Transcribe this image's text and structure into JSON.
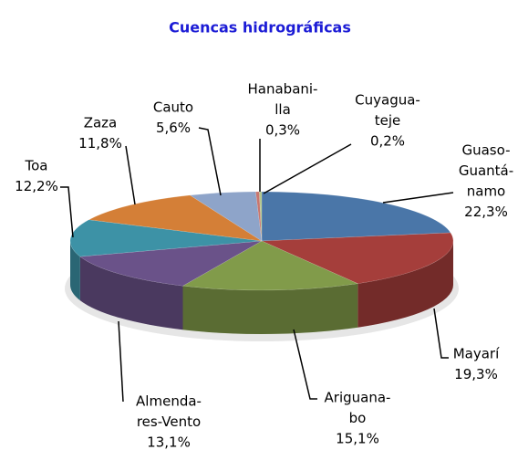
{
  "chart_data": {
    "type": "pie3d",
    "title": "Cuencas hidrográficas",
    "categories": [
      [
        "Guaso-",
        "Guantá-",
        "namo"
      ],
      [
        "Mayarí"
      ],
      [
        "Ariguana-",
        "bo"
      ],
      [
        "Almenda-",
        "res-Vento"
      ],
      [
        "Toa"
      ],
      [
        "Zaza"
      ],
      [
        "Cauto"
      ],
      [
        "Hanabani-",
        "lla"
      ],
      [
        "Cuyagua-",
        "teje"
      ]
    ],
    "values": [
      22.3,
      19.3,
      15.1,
      13.1,
      12.2,
      11.8,
      5.6,
      0.3,
      0.2
    ],
    "value_labels": [
      "22,3%",
      "19,3%",
      "15,1%",
      "13,1%",
      "12,2%",
      "11,8%",
      "5,6%",
      "0,3%",
      "0,2%"
    ],
    "colors": [
      "#4a76a8",
      "#a53e3b",
      "#819b4a",
      "#6a5289",
      "#3d92a6",
      "#d47f37",
      "#8ea4c9",
      "#c8766f",
      "#b3c68b"
    ]
  }
}
